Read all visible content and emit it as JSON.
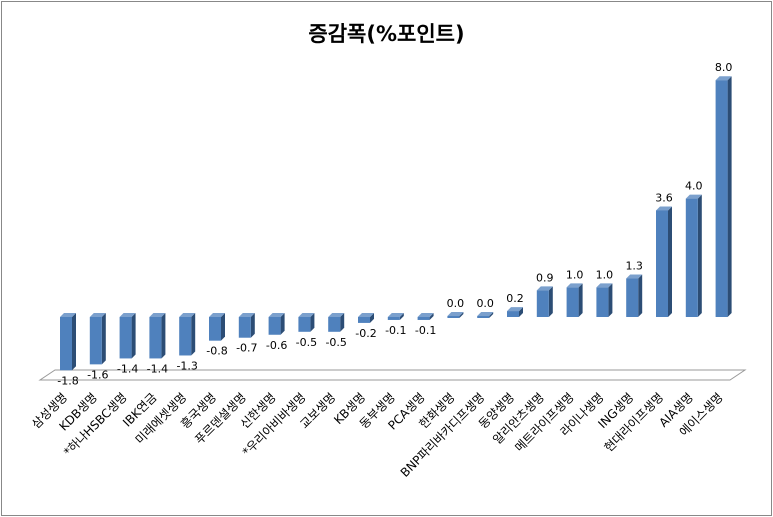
{
  "chart_data": {
    "type": "bar",
    "title": "증감폭(%포인트)",
    "xlabel": "",
    "ylabel": "",
    "ylim": [
      -1.8,
      8.0
    ],
    "grid": false,
    "categories": [
      "삼성생명",
      "KDB생명",
      "*하나HSBC생명",
      "IBK연금",
      "미래에셋생명",
      "흥국생명",
      "푸르덴셜생명",
      "신한생명",
      "*우리아비바생명",
      "교보생명",
      "KB생명",
      "동부생명",
      "PCA생명",
      "한화생명",
      "BNP파리바카디프생명",
      "동양생명",
      "알리안츠생명",
      "메트라이프생명",
      "라이나생명",
      "ING생명",
      "현대라이프생명",
      "AIA생명",
      "에이스생명"
    ],
    "values": [
      -1.8,
      -1.6,
      -1.4,
      -1.4,
      -1.3,
      -0.8,
      -0.7,
      -0.6,
      -0.5,
      -0.5,
      -0.2,
      -0.1,
      -0.1,
      0.0,
      0.0,
      0.2,
      0.9,
      1.0,
      1.0,
      1.3,
      3.6,
      4.0,
      8.0
    ],
    "colors": {
      "bar": "#4f81bd",
      "bar_side": "#2c4d75",
      "bar_top": "#7ba0cd"
    }
  }
}
